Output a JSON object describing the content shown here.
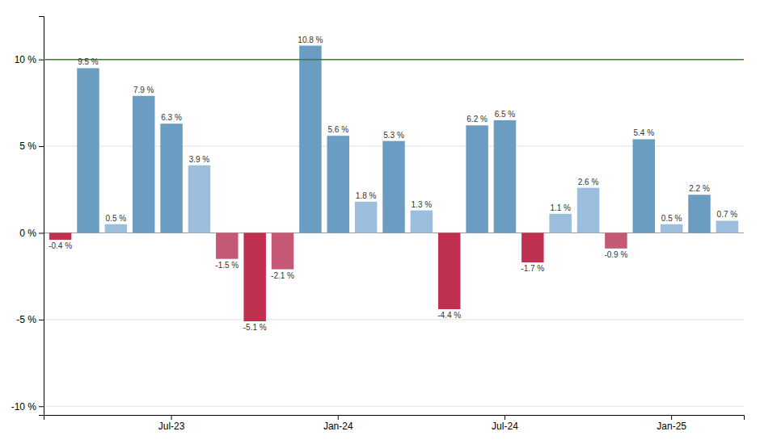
{
  "chart_data": {
    "type": "bar",
    "categories": [
      null,
      null,
      null,
      null,
      "Jul-23",
      null,
      null,
      null,
      null,
      null,
      "Jan-24",
      null,
      null,
      null,
      null,
      null,
      "Jul-24",
      null,
      null,
      null,
      null,
      null,
      "Jan-25",
      null,
      null
    ],
    "values": [
      -0.4,
      9.5,
      0.5,
      7.9,
      6.3,
      3.9,
      -1.5,
      -5.1,
      -2.1,
      10.8,
      5.6,
      1.8,
      5.3,
      1.3,
      -4.4,
      6.2,
      6.5,
      -1.7,
      1.1,
      2.6,
      -0.9,
      5.4,
      0.5,
      2.2,
      0.7
    ],
    "value_labels": [
      "-0.4 %",
      "9.5 %",
      "0.5 %",
      "7.9 %",
      "6.3 %",
      "3.9 %",
      "-1.5 %",
      "-5.1 %",
      "-2.1 %",
      "10.8 %",
      "5.6 %",
      "1.8 %",
      "5.3 %",
      "1.3 %",
      "-4.4 %",
      "6.2 %",
      "6.5 %",
      "-1.7 %",
      "1.1 %",
      "2.6 %",
      "-0.9 %",
      "5.4 %",
      "0.5 %",
      "2.2 %",
      "0.7 %"
    ],
    "colors": [
      "#C0314F",
      "#6B9DC2",
      "#9BBEDD",
      "#6B9DC2",
      "#6B9DC2",
      "#9BBEDD",
      "#C45875",
      "#C0314F",
      "#C45875",
      "#6B9DC2",
      "#6B9DC2",
      "#9BBEDD",
      "#6B9DC2",
      "#9BBEDD",
      "#C0314F",
      "#6B9DC2",
      "#6B9DC2",
      "#C0314F",
      "#9BBEDD",
      "#9BBEDD",
      "#C45875",
      "#6B9DC2",
      "#9BBEDD",
      "#6B9DC2",
      "#9BBEDD"
    ],
    "data_labels": true,
    "reference_line": {
      "y": 10,
      "color": "#3A7D2C"
    },
    "ylim": [
      -10.5,
      12.5
    ],
    "yticks": [
      {
        "value": -10,
        "label": "-10 %"
      },
      {
        "value": -5,
        "label": "-5 %"
      },
      {
        "value": 0,
        "label": "0 %"
      },
      {
        "value": 5,
        "label": "5 %"
      },
      {
        "value": 10,
        "label": "10 %"
      }
    ],
    "grid": true
  }
}
